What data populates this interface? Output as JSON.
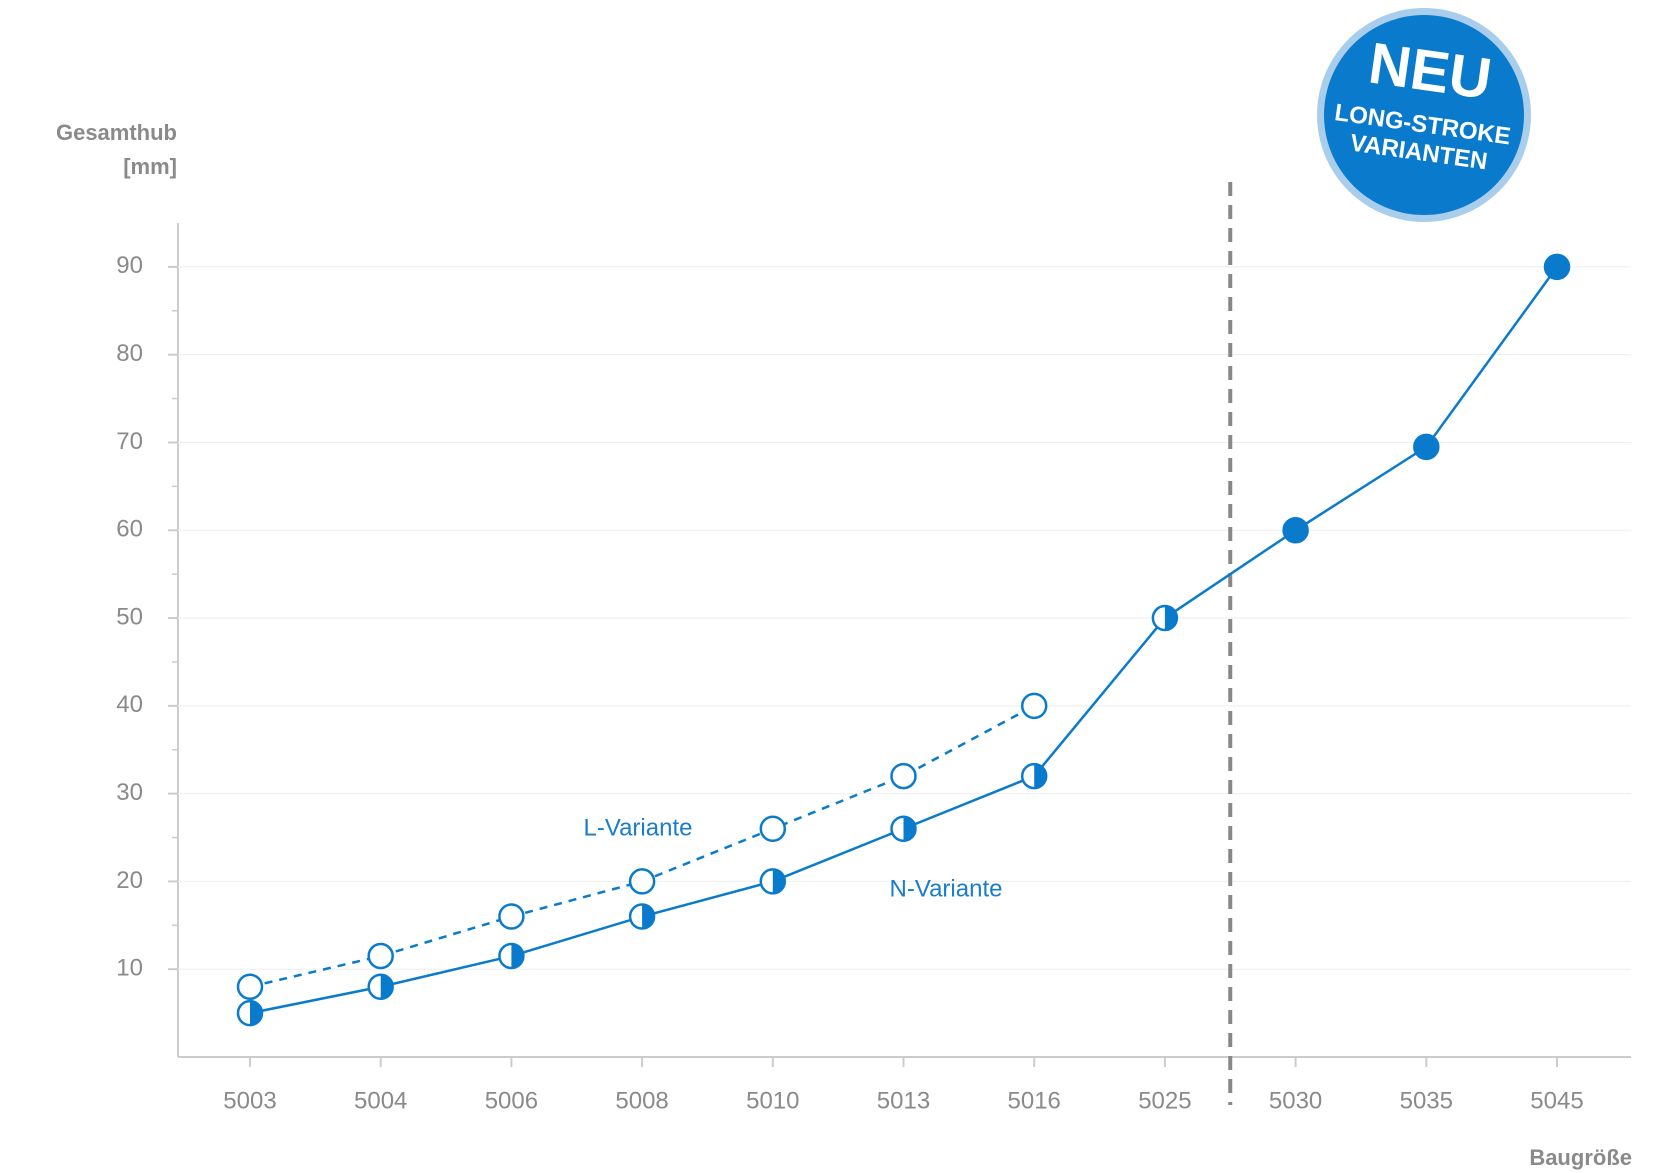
{
  "chart_data": {
    "type": "line",
    "y_label": [
      "Gesamthub",
      "[mm]"
    ],
    "x_label": "Baugröße",
    "badge": {
      "title": "NEU",
      "lines": [
        "LONG-STROKE",
        "VARIANTEN"
      ]
    },
    "categories": [
      "5003",
      "5004",
      "5006",
      "5008",
      "5010",
      "5013",
      "5016",
      "5025",
      "5030",
      "5035",
      "5045"
    ],
    "series": [
      {
        "name": "N-Variante",
        "color": "#0a7bcc",
        "dashed": false,
        "values": [
          5,
          8,
          11.5,
          16,
          20,
          26,
          32,
          50,
          60,
          69.5,
          90
        ],
        "markers": [
          "half",
          "half",
          "half",
          "half",
          "half",
          "half",
          "half",
          "half",
          "filled",
          "filled",
          "filled"
        ]
      },
      {
        "name": "L-Variante",
        "color": "#0a7bcc",
        "dashed": true,
        "values": [
          8,
          11.5,
          16,
          20,
          26,
          32,
          40,
          null,
          null,
          null,
          null
        ],
        "markers": [
          "open",
          "open",
          "open",
          "open",
          "open",
          "open",
          "open",
          null,
          null,
          null,
          null
        ]
      }
    ],
    "ylim": [
      0,
      95
    ],
    "yticks": [
      10,
      20,
      30,
      40,
      50,
      60,
      70,
      80,
      90
    ],
    "grid": true
  }
}
